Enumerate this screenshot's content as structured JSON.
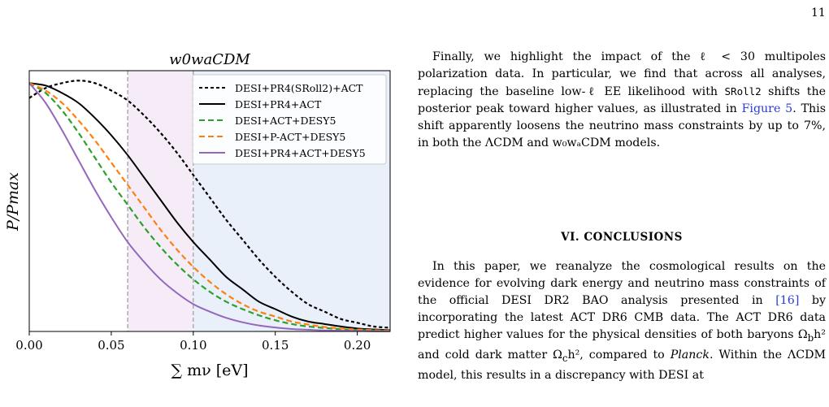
{
  "page_number": "11",
  "chart_data": {
    "type": "line",
    "title": "w0waCDM",
    "xlabel": "∑ mν [eV]",
    "ylabel": "P/Pmax",
    "xlim": [
      0.0,
      0.22
    ],
    "ylim": [
      0.0,
      1.05
    ],
    "xticks": [
      "0.00",
      "0.05",
      "0.10",
      "0.15",
      "0.20"
    ],
    "xtick_values": [
      0.0,
      0.05,
      0.1,
      0.15,
      0.2
    ],
    "legend_position": "top-right",
    "shaded_regions": [
      {
        "from": 0.06,
        "to": 0.1,
        "color": "#f5ecf7"
      },
      {
        "from": 0.1,
        "to": 0.22,
        "color": "#e9f0fa"
      }
    ],
    "vlines": [
      0.06,
      0.1
    ],
    "series": [
      {
        "name": "DESI+PR4(SRoll2)+ACT",
        "color": "#000000",
        "style": "dashed",
        "x": [
          0.0,
          0.01,
          0.02,
          0.03,
          0.04,
          0.05,
          0.06,
          0.07,
          0.08,
          0.09,
          0.1,
          0.11,
          0.12,
          0.13,
          0.14,
          0.15,
          0.16,
          0.17,
          0.18,
          0.19,
          0.2,
          0.21,
          0.22
        ],
        "y": [
          0.94,
          0.98,
          1.0,
          1.01,
          1.0,
          0.97,
          0.93,
          0.87,
          0.8,
          0.72,
          0.63,
          0.54,
          0.45,
          0.37,
          0.29,
          0.22,
          0.16,
          0.11,
          0.08,
          0.05,
          0.035,
          0.02,
          0.015
        ]
      },
      {
        "name": "DESI+PR4+ACT",
        "color": "#000000",
        "style": "solid",
        "x": [
          0.0,
          0.01,
          0.02,
          0.03,
          0.04,
          0.05,
          0.06,
          0.07,
          0.08,
          0.09,
          0.1,
          0.11,
          0.12,
          0.13,
          0.14,
          0.15,
          0.16,
          0.17,
          0.18,
          0.19,
          0.2,
          0.21,
          0.22
        ],
        "y": [
          1.0,
          0.99,
          0.96,
          0.92,
          0.86,
          0.79,
          0.71,
          0.62,
          0.53,
          0.44,
          0.36,
          0.29,
          0.22,
          0.17,
          0.12,
          0.09,
          0.06,
          0.04,
          0.03,
          0.02,
          0.012,
          0.008,
          0.005
        ]
      },
      {
        "name": "DESI+ACT+DESY5",
        "color": "#2ca02c",
        "style": "dashed",
        "x": [
          0.0,
          0.01,
          0.02,
          0.03,
          0.04,
          0.05,
          0.06,
          0.07,
          0.08,
          0.09,
          0.1,
          0.11,
          0.12,
          0.13,
          0.14,
          0.15,
          0.16,
          0.17,
          0.18,
          0.19,
          0.2,
          0.21,
          0.22
        ],
        "y": [
          1.0,
          0.96,
          0.89,
          0.8,
          0.7,
          0.6,
          0.51,
          0.42,
          0.34,
          0.27,
          0.21,
          0.16,
          0.12,
          0.09,
          0.065,
          0.045,
          0.03,
          0.02,
          0.014,
          0.009,
          0.006,
          0.004,
          0.002
        ]
      },
      {
        "name": "DESI+P-ACT+DESY5",
        "color": "#ff7f0e",
        "style": "dashed",
        "x": [
          0.0,
          0.01,
          0.02,
          0.03,
          0.04,
          0.05,
          0.06,
          0.07,
          0.08,
          0.09,
          0.1,
          0.11,
          0.12,
          0.13,
          0.14,
          0.15,
          0.16,
          0.17,
          0.18,
          0.19,
          0.2,
          0.21,
          0.22
        ],
        "y": [
          1.0,
          0.97,
          0.92,
          0.85,
          0.77,
          0.68,
          0.59,
          0.5,
          0.41,
          0.33,
          0.26,
          0.2,
          0.15,
          0.11,
          0.08,
          0.06,
          0.04,
          0.028,
          0.018,
          0.012,
          0.008,
          0.005,
          0.003
        ]
      },
      {
        "name": "DESI+PR4+ACT+DESY5",
        "color": "#9467bd",
        "style": "solid",
        "x": [
          0.0,
          0.01,
          0.02,
          0.03,
          0.04,
          0.05,
          0.06,
          0.07,
          0.08,
          0.09,
          0.1,
          0.11,
          0.12,
          0.13,
          0.14,
          0.15,
          0.16,
          0.17,
          0.18,
          0.19,
          0.2,
          0.21,
          0.22
        ],
        "y": [
          1.0,
          0.92,
          0.81,
          0.69,
          0.57,
          0.46,
          0.36,
          0.28,
          0.21,
          0.155,
          0.11,
          0.08,
          0.055,
          0.037,
          0.024,
          0.016,
          0.01,
          0.007,
          0.004,
          0.003,
          0.002,
          0.001,
          0.001
        ]
      }
    ]
  },
  "text": {
    "intro_a": "Finally, we highlight the impact of the ℓ < 30 multipoles polarization data. In particular, we find that across all analyses, replacing the baseline low-ℓ EE likelihood with ",
    "intro_mono": "SRoll2",
    "intro_b": " shifts the posterior peak toward higher values, as illustrated in ",
    "intro_link": "Figure 5",
    "intro_c": ". This shift apparently loosens the neutrino mass constraints by up to 7%, in both the ΛCDM and w₀wₐCDM models.",
    "heading": "VI.    CONCLUSIONS",
    "body_a": "In this paper, we reanalyze the cosmological results on the evidence for evolving dark energy and neutrino mass constraints of the official DESI DR2 BAO analysis presented in ",
    "body_cite": "[16]",
    "body_b": " by incorporating the latest ACT DR6 CMB data. The ACT DR6 data predict higher values for the physical densities of both baryons Ω",
    "body_sub1": "b",
    "body_c": "h² and cold dark matter Ω",
    "body_sub2": "c",
    "body_d": "h², compared to ",
    "body_italic": "Planck",
    "body_e": ". Within the ΛCDM model, this results in a discrepancy with DESI at"
  }
}
